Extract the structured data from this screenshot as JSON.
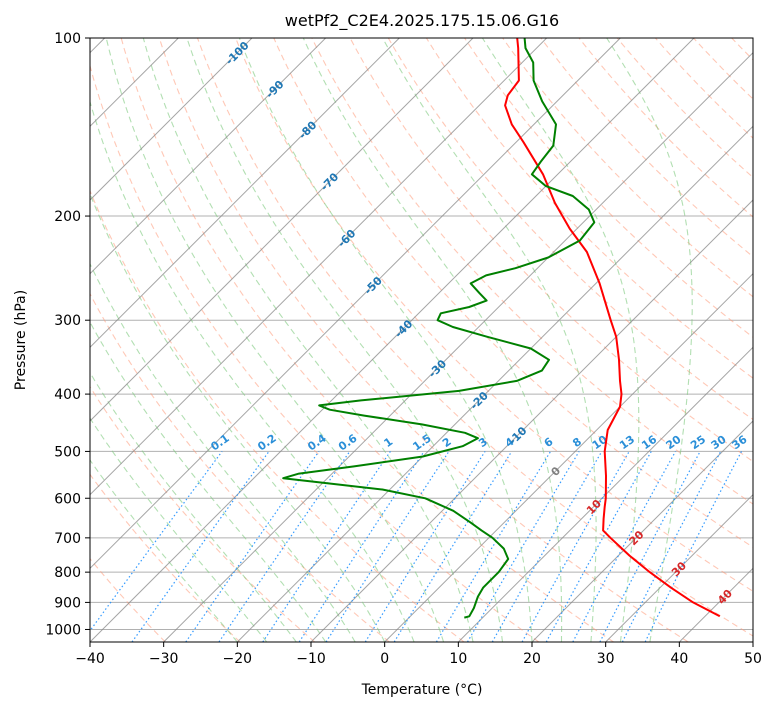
{
  "chart_data": {
    "type": "line",
    "subtype": "skew-t log-p",
    "title": "wetPf2_C2E4.2025.175.15.06.G16",
    "xlabel": "Temperature (°C)",
    "ylabel": "Pressure (hPa)",
    "xlim": [
      -40,
      50
    ],
    "ylim": [
      1050,
      100
    ],
    "y_scale": "log",
    "x_ticks": [
      "−40",
      "−30",
      "−20",
      "−10",
      "0",
      "10",
      "20",
      "30",
      "40",
      "50"
    ],
    "y_ticks": [
      "100",
      "200",
      "300",
      "400",
      "500",
      "600",
      "700",
      "800",
      "900",
      "1000"
    ],
    "grid": true,
    "colors": {
      "temperature": "#ff0000",
      "dewpoint": "#008000",
      "isotherm": "#888888",
      "dry_adiabat": "#ff9a7a",
      "moist_adiabat": "#7fc97f",
      "mixing_ratio": "#1e90ff",
      "mixing_ratio_label": "#2a8fd8",
      "isotherm_label_cold": "#1f77b4",
      "isotherm_label_zero": "#808080",
      "isotherm_label_warm": "#d62728",
      "frame": "#000000"
    },
    "series": [
      {
        "name": "",
        "role": "temperature",
        "points": [
          {
            "p": 950,
            "t": 42.0
          },
          {
            "p": 900,
            "t": 36.5
          },
          {
            "p": 850,
            "t": 31.5
          },
          {
            "p": 800,
            "t": 26.5
          },
          {
            "p": 750,
            "t": 21.5
          },
          {
            "p": 700,
            "t": 16.5
          },
          {
            "p": 680,
            "t": 14.5
          },
          {
            "p": 650,
            "t": 13.0
          },
          {
            "p": 620,
            "t": 11.5
          },
          {
            "p": 600,
            "t": 10.5
          },
          {
            "p": 550,
            "t": 7.5
          },
          {
            "p": 500,
            "t": 4.0
          },
          {
            "p": 460,
            "t": 1.5
          },
          {
            "p": 420,
            "t": 0.0
          },
          {
            "p": 400,
            "t": -1.5
          },
          {
            "p": 380,
            "t": -3.5
          },
          {
            "p": 350,
            "t": -6.5
          },
          {
            "p": 320,
            "t": -10.0
          },
          {
            "p": 300,
            "t": -13.0
          },
          {
            "p": 260,
            "t": -19.5
          },
          {
            "p": 230,
            "t": -25.5
          },
          {
            "p": 210,
            "t": -31.0
          },
          {
            "p": 190,
            "t": -36.5
          },
          {
            "p": 170,
            "t": -42.0
          },
          {
            "p": 150,
            "t": -49.0
          },
          {
            "p": 140,
            "t": -53.0
          },
          {
            "p": 130,
            "t": -56.5
          },
          {
            "p": 125,
            "t": -57.5
          },
          {
            "p": 118,
            "t": -58.0
          },
          {
            "p": 110,
            "t": -60.5
          },
          {
            "p": 104,
            "t": -62.5
          },
          {
            "p": 100,
            "t": -64.0
          }
        ]
      },
      {
        "name": "",
        "role": "dewpoint",
        "points": [
          {
            "p": 955,
            "t": 7.5
          },
          {
            "p": 950,
            "t": 8.0
          },
          {
            "p": 920,
            "t": 7.5
          },
          {
            "p": 880,
            "t": 6.5
          },
          {
            "p": 850,
            "t": 6.0
          },
          {
            "p": 800,
            "t": 6.0
          },
          {
            "p": 760,
            "t": 5.5
          },
          {
            "p": 730,
            "t": 3.5
          },
          {
            "p": 700,
            "t": 0.5
          },
          {
            "p": 680,
            "t": -2.0
          },
          {
            "p": 660,
            "t": -4.5
          },
          {
            "p": 630,
            "t": -8.5
          },
          {
            "p": 600,
            "t": -14.0
          },
          {
            "p": 580,
            "t": -21.0
          },
          {
            "p": 565,
            "t": -30.0
          },
          {
            "p": 555,
            "t": -36.0
          },
          {
            "p": 545,
            "t": -34.5
          },
          {
            "p": 530,
            "t": -28.0
          },
          {
            "p": 510,
            "t": -20.0
          },
          {
            "p": 490,
            "t": -16.0
          },
          {
            "p": 475,
            "t": -15.0
          },
          {
            "p": 465,
            "t": -17.5
          },
          {
            "p": 450,
            "t": -24.5
          },
          {
            "p": 435,
            "t": -33.5
          },
          {
            "p": 425,
            "t": -39.0
          },
          {
            "p": 418,
            "t": -41.0
          },
          {
            "p": 410,
            "t": -36.0
          },
          {
            "p": 395,
            "t": -24.0
          },
          {
            "p": 380,
            "t": -17.5
          },
          {
            "p": 365,
            "t": -15.5
          },
          {
            "p": 350,
            "t": -16.0
          },
          {
            "p": 335,
            "t": -20.0
          },
          {
            "p": 320,
            "t": -27.5
          },
          {
            "p": 308,
            "t": -33.5
          },
          {
            "p": 300,
            "t": -36.5
          },
          {
            "p": 292,
            "t": -37.0
          },
          {
            "p": 285,
            "t": -34.0
          },
          {
            "p": 278,
            "t": -32.5
          },
          {
            "p": 270,
            "t": -34.5
          },
          {
            "p": 260,
            "t": -37.0
          },
          {
            "p": 252,
            "t": -36.0
          },
          {
            "p": 245,
            "t": -33.0
          },
          {
            "p": 235,
            "t": -30.0
          },
          {
            "p": 220,
            "t": -28.0
          },
          {
            "p": 205,
            "t": -28.5
          },
          {
            "p": 195,
            "t": -31.0
          },
          {
            "p": 185,
            "t": -35.0
          },
          {
            "p": 178,
            "t": -40.0
          },
          {
            "p": 170,
            "t": -43.5
          },
          {
            "p": 162,
            "t": -44.0
          },
          {
            "p": 152,
            "t": -44.5
          },
          {
            "p": 140,
            "t": -47.0
          },
          {
            "p": 128,
            "t": -52.0
          },
          {
            "p": 118,
            "t": -56.0
          },
          {
            "p": 110,
            "t": -58.5
          },
          {
            "p": 104,
            "t": -61.5
          },
          {
            "p": 100,
            "t": -63.0
          }
        ]
      }
    ],
    "isotherm_labels": [
      {
        "t": -100,
        "text": "-100"
      },
      {
        "t": -90,
        "text": "-90"
      },
      {
        "t": -80,
        "text": "-80"
      },
      {
        "t": -70,
        "text": "-70"
      },
      {
        "t": -60,
        "text": "-60"
      },
      {
        "t": -50,
        "text": "-50"
      },
      {
        "t": -40,
        "text": "-40"
      },
      {
        "t": -30,
        "text": "-30"
      },
      {
        "t": -20,
        "text": "-20"
      },
      {
        "t": -10,
        "text": "-10"
      },
      {
        "t": 0,
        "text": "0"
      },
      {
        "t": 10,
        "text": "10"
      },
      {
        "t": 20,
        "text": "20"
      },
      {
        "t": 30,
        "text": "30"
      },
      {
        "t": 40,
        "text": "40"
      }
    ],
    "mixing_ratio_labels": [
      "0.1",
      "0.2",
      "0.4",
      "0.6",
      "1",
      "1.5",
      "2",
      "3",
      "4",
      "6",
      "8",
      "10",
      "13",
      "16",
      "20",
      "25",
      "30",
      "36"
    ]
  }
}
